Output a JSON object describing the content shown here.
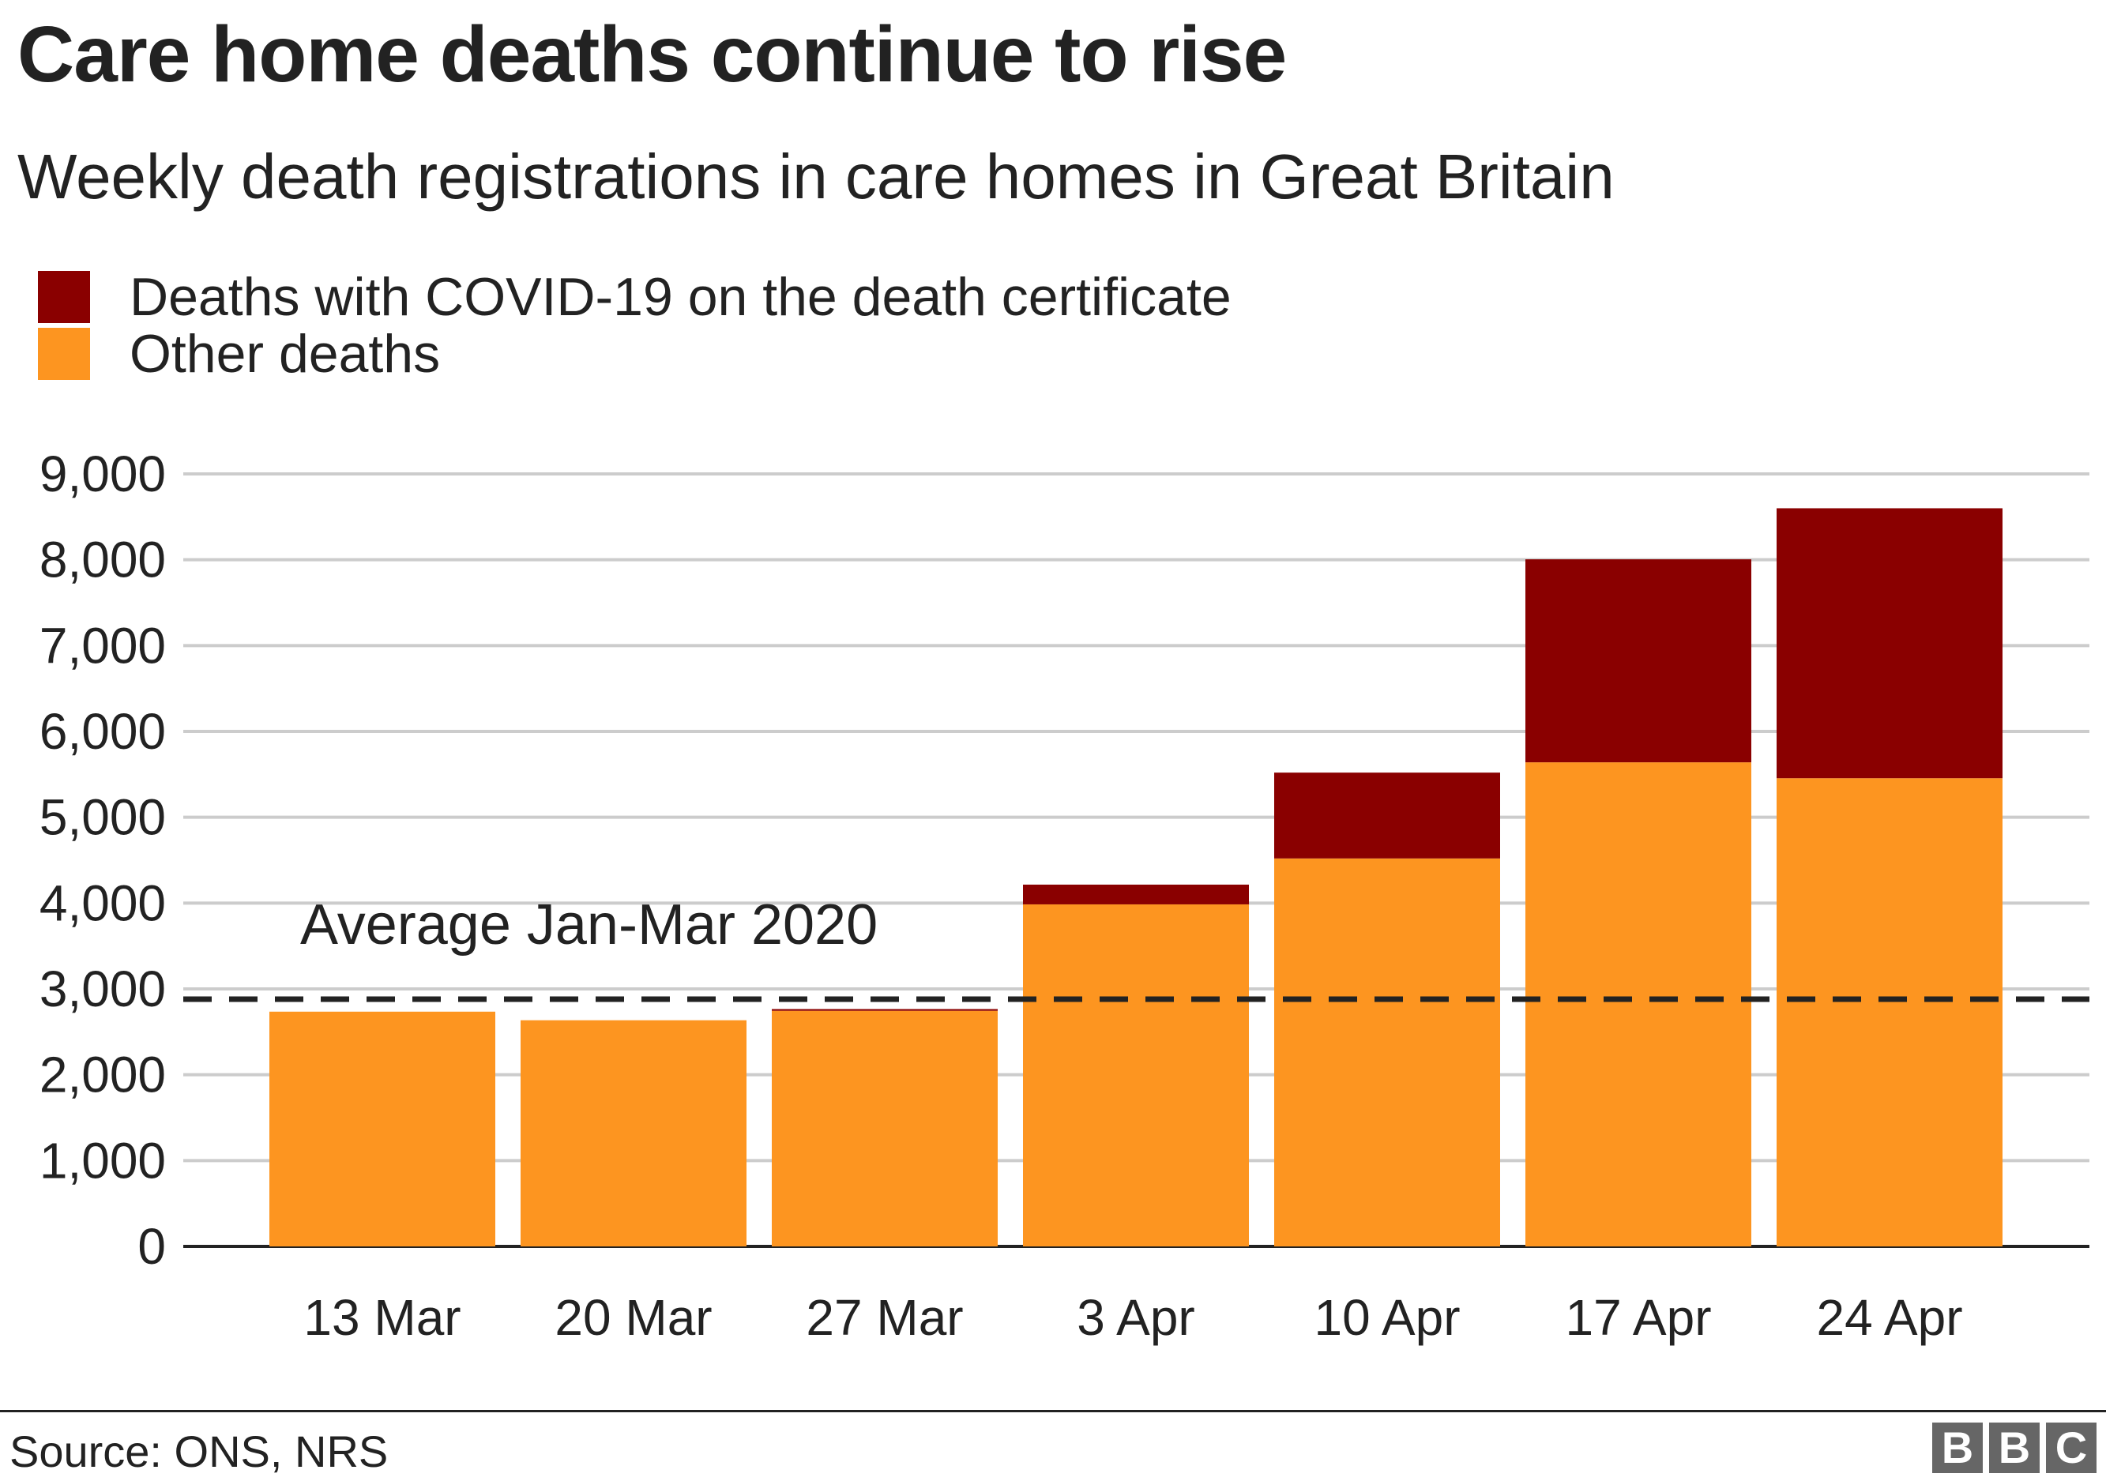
{
  "title": "Care home deaths continue to rise",
  "subtitle": "Weekly death registrations in care homes in Great Britain",
  "legend": [
    {
      "label": "Deaths with COVID-19 on the death certificate",
      "color": "#8a0000"
    },
    {
      "label": "Other deaths",
      "color": "#fd9520"
    }
  ],
  "source": "Source: ONS, NRS",
  "logo": {
    "letters": [
      "B",
      "B",
      "C"
    ]
  },
  "chart_data": {
    "type": "bar",
    "stacked": true,
    "categories": [
      "13 Mar",
      "20 Mar",
      "27 Mar",
      "3 Apr",
      "10 Apr",
      "17 Apr",
      "24 Apr"
    ],
    "series": [
      {
        "name": "Other deaths",
        "color": "#fd9520",
        "values": [
          2735,
          2635,
          2745,
          3985,
          4520,
          5640,
          5455
        ]
      },
      {
        "name": "Deaths with COVID-19 on the death certificate",
        "color": "#8a0000",
        "values": [
          0,
          0,
          20,
          230,
          1000,
          2365,
          3145
        ]
      }
    ],
    "ylim": [
      0,
      9000
    ],
    "yticks": [
      0,
      1000,
      2000,
      3000,
      4000,
      5000,
      6000,
      7000,
      8000,
      9000
    ],
    "ytick_labels": [
      "0",
      "1,000",
      "2,000",
      "3,000",
      "4,000",
      "5,000",
      "6,000",
      "7,000",
      "8,000",
      "9,000"
    ],
    "grid": true,
    "reference_line": {
      "label": "Average Jan-Mar 2020",
      "value": 2880,
      "style": "dashed"
    },
    "xlabel": "",
    "ylabel": ""
  }
}
